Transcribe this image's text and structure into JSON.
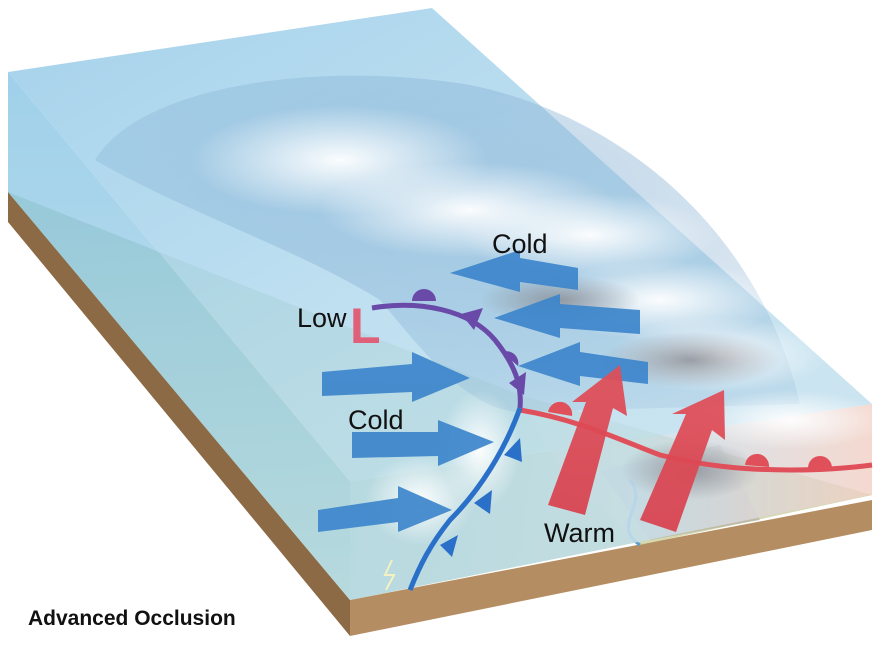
{
  "title": "Advanced Occlusion",
  "labels": {
    "cold_top": "Cold",
    "low": "Low",
    "low_symbol": "L",
    "cold_left": "Cold",
    "warm": "Warm"
  },
  "colors": {
    "cold_arrow": "#3d86cc",
    "warm_arrow": "#d8414e",
    "occluded_front": "#6a4aa8",
    "cold_front": "#2a70c8",
    "warm_front": "#e0505a",
    "low_symbol": "#e0607a",
    "ground_side": "#b58d62"
  },
  "icons": [
    "cold-air-arrow",
    "warm-air-arrow",
    "occluded-front-symbol",
    "cold-front-symbol",
    "warm-front-symbol",
    "cloud-icon",
    "lightning-icon"
  ]
}
